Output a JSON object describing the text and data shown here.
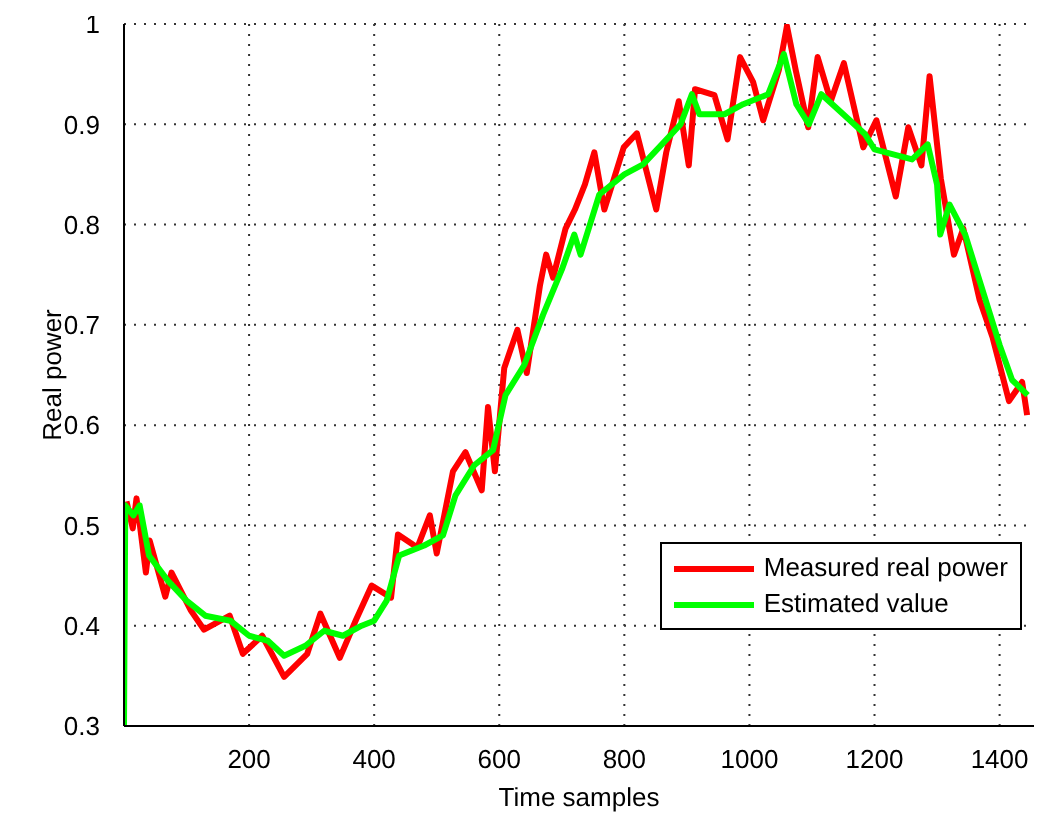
{
  "chart_data": {
    "type": "line",
    "xlabel": "Time samples",
    "ylabel": "Real power",
    "xlim": [
      0,
      1455
    ],
    "xticks": [
      200,
      400,
      600,
      800,
      1000,
      1200,
      1400
    ],
    "ylim": [
      0.3,
      1
    ],
    "yticks": [
      0.3,
      0.4,
      0.5,
      0.6,
      0.7,
      0.8,
      0.9,
      1
    ],
    "grid": true,
    "legend": "bottom right",
    "line_style": "solid",
    "marker": "none",
    "series": [
      {
        "name": "Measured real power",
        "color": "#ff0000",
        "x": [
          4,
          14,
          20,
          35,
          41,
          66,
          76,
          107,
          128,
          169,
          190,
          221,
          256,
          293,
          314,
          345,
          371,
          396,
          427,
          438,
          469,
          489,
          500,
          526,
          546,
          572,
          582,
          593,
          608,
          629,
          644,
          665,
          675,
          686,
          706,
          721,
          737,
          752,
          768,
          799,
          820,
          851,
          867,
          887,
          903,
          913,
          944,
          965,
          985,
          1006,
          1022,
          1047,
          1060,
          1074,
          1094,
          1109,
          1130,
          1151,
          1182,
          1203,
          1234,
          1254,
          1275,
          1288,
          1306,
          1327,
          1342,
          1368,
          1389,
          1415,
          1436,
          1444
        ],
        "values": [
          0.524,
          0.497,
          0.527,
          0.453,
          0.485,
          0.429,
          0.453,
          0.415,
          0.396,
          0.41,
          0.372,
          0.39,
          0.349,
          0.372,
          0.412,
          0.368,
          0.406,
          0.44,
          0.428,
          0.491,
          0.478,
          0.51,
          0.472,
          0.554,
          0.573,
          0.535,
          0.618,
          0.554,
          0.657,
          0.695,
          0.652,
          0.739,
          0.77,
          0.747,
          0.796,
          0.815,
          0.84,
          0.872,
          0.815,
          0.877,
          0.891,
          0.815,
          0.872,
          0.923,
          0.859,
          0.935,
          0.929,
          0.885,
          0.967,
          0.942,
          0.904,
          0.954,
          0.998,
          0.954,
          0.897,
          0.967,
          0.923,
          0.961,
          0.877,
          0.904,
          0.828,
          0.897,
          0.859,
          0.948,
          0.846,
          0.77,
          0.796,
          0.725,
          0.687,
          0.624,
          0.643,
          0.61
        ]
      },
      {
        "name": "Estimated value",
        "color": "#00ff00",
        "x": [
          0,
          2,
          15,
          25,
          40,
          70,
          100,
          130,
          170,
          200,
          230,
          256,
          290,
          320,
          350,
          380,
          400,
          420,
          440,
          480,
          510,
          530,
          560,
          590,
          610,
          640,
          670,
          700,
          720,
          730,
          760,
          800,
          830,
          860,
          890,
          908,
          920,
          960,
          990,
          1030,
          1055,
          1075,
          1095,
          1115,
          1150,
          1185,
          1200,
          1230,
          1260,
          1285,
          1300,
          1305,
          1320,
          1345,
          1370,
          1400,
          1420,
          1445
        ],
        "values": [
          0.3,
          0.52,
          0.51,
          0.52,
          0.47,
          0.445,
          0.425,
          0.41,
          0.405,
          0.39,
          0.385,
          0.37,
          0.38,
          0.395,
          0.39,
          0.4,
          0.405,
          0.425,
          0.47,
          0.48,
          0.49,
          0.53,
          0.56,
          0.575,
          0.63,
          0.66,
          0.71,
          0.755,
          0.79,
          0.77,
          0.83,
          0.85,
          0.86,
          0.88,
          0.9,
          0.93,
          0.91,
          0.91,
          0.92,
          0.93,
          0.97,
          0.92,
          0.9,
          0.93,
          0.91,
          0.89,
          0.875,
          0.87,
          0.865,
          0.88,
          0.84,
          0.79,
          0.82,
          0.79,
          0.74,
          0.68,
          0.645,
          0.63
        ]
      }
    ]
  }
}
